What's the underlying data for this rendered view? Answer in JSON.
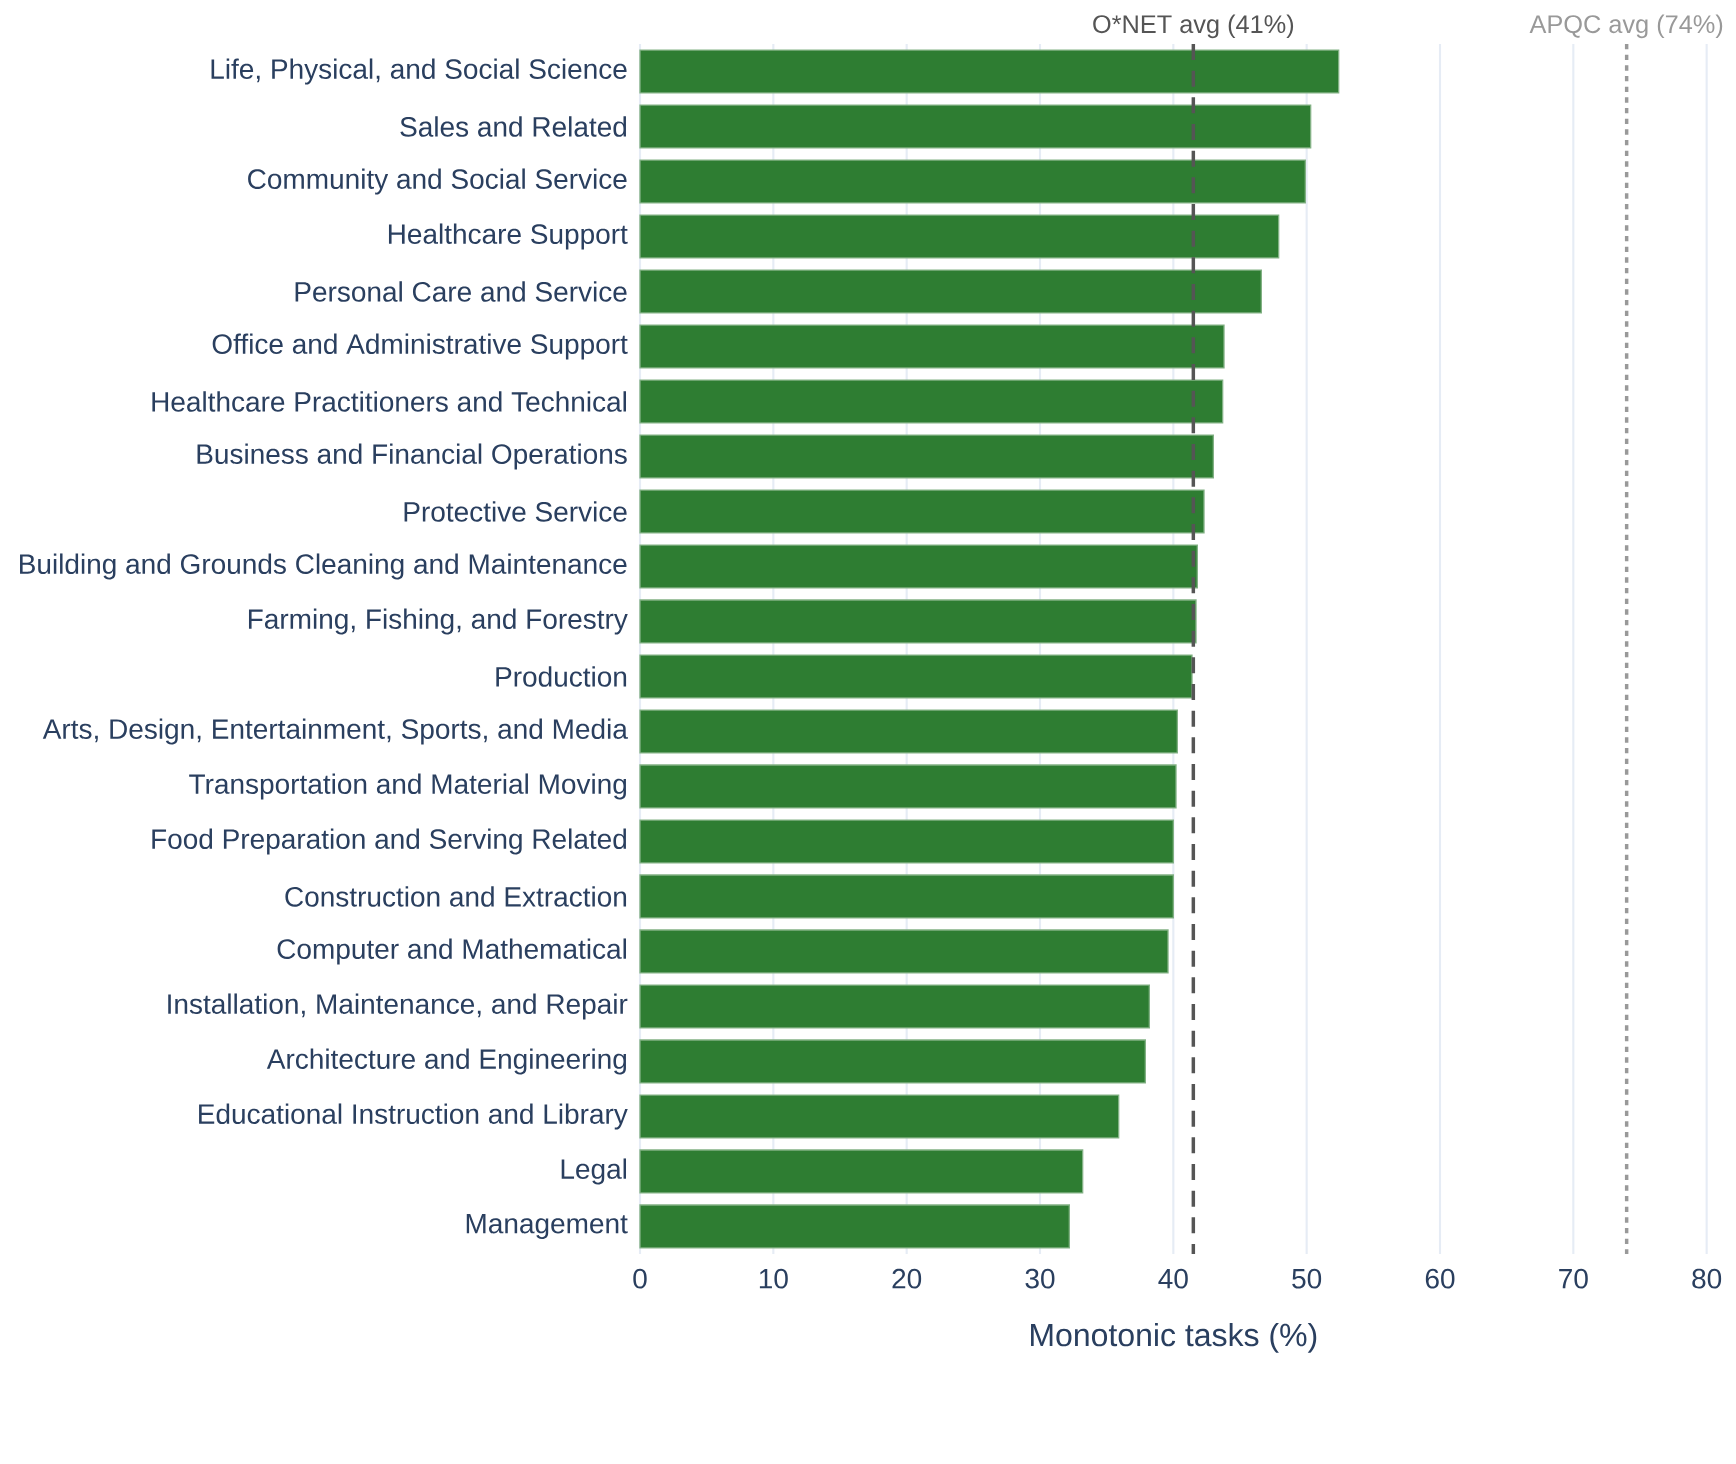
{
  "chart_data": {
    "type": "bar",
    "orientation": "horizontal",
    "categories": [
      "Life, Physical, and Social Science",
      "Sales and Related",
      "Community and Social Service",
      "Healthcare Support",
      "Personal Care and Service",
      "Office and Administrative Support",
      "Healthcare Practitioners and Technical",
      "Business and Financial Operations",
      "Protective Service",
      "Building and Grounds Cleaning and Maintenance",
      "Farming, Fishing, and Forestry",
      "Production",
      "Arts, Design, Entertainment, Sports, and Media",
      "Transportation and Material Moving",
      "Food Preparation and Serving Related",
      "Construction and Extraction",
      "Computer and Mathematical",
      "Installation, Maintenance, and Repair",
      "Architecture and Engineering",
      "Educational Instruction and Library",
      "Legal",
      "Management"
    ],
    "values": [
      52.4,
      50.3,
      49.9,
      47.9,
      46.6,
      43.8,
      43.7,
      43.0,
      42.3,
      41.8,
      41.7,
      41.4,
      40.3,
      40.2,
      40.0,
      40.0,
      39.6,
      38.2,
      37.9,
      35.9,
      33.2,
      32.2
    ],
    "color": "#2e7d32",
    "xlabel": "Monotonic tasks (%)",
    "xlim": [
      0,
      80
    ],
    "xticks": [
      0,
      10,
      20,
      30,
      40,
      50,
      60,
      70,
      80
    ],
    "grid": "x",
    "ref_lines": [
      {
        "axis": "x",
        "value": 41.5,
        "label": "O*NET avg (41%)",
        "color": "#555555",
        "line_style": "dashed"
      },
      {
        "axis": "x",
        "value": 74,
        "label": "APQC avg (74%)",
        "color": "#999999",
        "line_style": "dotted"
      }
    ]
  }
}
